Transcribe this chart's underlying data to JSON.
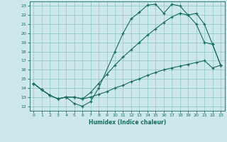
{
  "xlabel": "Humidex (Indice chaleur)",
  "bg_color": "#cce8e8",
  "grid_color": "#99cccc",
  "line_color": "#1a6b60",
  "xlim": [
    -0.5,
    23.5
  ],
  "ylim": [
    11.5,
    23.5
  ],
  "xticks": [
    0,
    1,
    2,
    3,
    4,
    5,
    6,
    7,
    8,
    9,
    10,
    11,
    12,
    13,
    14,
    15,
    16,
    17,
    18,
    19,
    20,
    21,
    22,
    23
  ],
  "yticks": [
    12,
    13,
    14,
    15,
    16,
    17,
    18,
    19,
    20,
    21,
    22,
    23
  ],
  "line1_x": [
    0,
    1,
    2,
    3,
    4,
    5,
    6,
    7,
    8,
    10,
    11,
    12,
    13,
    14,
    15,
    16,
    17,
    18,
    19,
    20,
    21,
    22,
    23
  ],
  "line1_y": [
    14.5,
    13.8,
    13.2,
    12.8,
    13.0,
    12.3,
    12.0,
    12.5,
    14.0,
    18.0,
    20.0,
    21.6,
    22.3,
    23.1,
    23.2,
    22.2,
    23.2,
    23.0,
    22.0,
    22.2,
    21.0,
    18.8,
    16.5
  ],
  "line2_x": [
    0,
    1,
    2,
    3,
    4,
    5,
    6,
    7,
    8,
    9,
    10,
    11,
    12,
    13,
    14,
    15,
    16,
    17,
    18,
    19,
    20,
    21,
    22,
    23
  ],
  "line2_y": [
    14.5,
    13.8,
    13.2,
    12.8,
    13.0,
    13.0,
    12.8,
    13.5,
    14.5,
    15.5,
    16.5,
    17.4,
    18.2,
    19.0,
    19.8,
    20.5,
    21.2,
    21.8,
    22.2,
    22.0,
    21.0,
    19.0,
    18.8,
    16.5
  ],
  "line3_x": [
    0,
    1,
    2,
    3,
    4,
    5,
    6,
    7,
    8,
    9,
    10,
    11,
    12,
    13,
    14,
    15,
    16,
    17,
    18,
    19,
    20,
    21,
    22,
    23
  ],
  "line3_y": [
    14.5,
    13.8,
    13.2,
    12.8,
    13.0,
    13.0,
    12.8,
    13.0,
    13.3,
    13.6,
    14.0,
    14.3,
    14.7,
    15.0,
    15.4,
    15.7,
    16.0,
    16.2,
    16.4,
    16.6,
    16.8,
    17.0,
    16.2,
    16.5
  ]
}
